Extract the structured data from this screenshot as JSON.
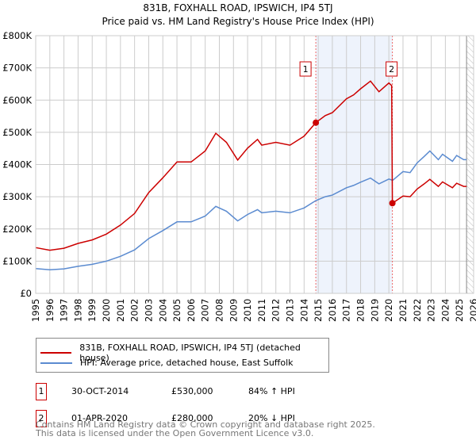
{
  "title_line1": "831B, FOXHALL ROAD, IPSWICH, IP4 5TJ",
  "title_line2": "Price paid vs. HM Land Registry's House Price Index (HPI)",
  "chart_data": {
    "type": "line",
    "title": "831B, FOXHALL ROAD, IPSWICH, IP4 5TJ - Price paid vs. HM Land Registry's House Price Index (HPI)",
    "xlabel": "",
    "ylabel": "",
    "xlim": [
      1995,
      2026
    ],
    "ylim": [
      0,
      800000
    ],
    "y_ticks": [
      "£0",
      "£100K",
      "£200K",
      "£300K",
      "£400K",
      "£500K",
      "£600K",
      "£700K",
      "£800K"
    ],
    "x_ticks": [
      "1995",
      "1996",
      "1997",
      "1998",
      "1999",
      "2000",
      "2001",
      "2002",
      "2003",
      "2004",
      "2005",
      "2006",
      "2007",
      "2008",
      "2009",
      "2010",
      "2011",
      "2012",
      "2013",
      "2014",
      "2015",
      "2016",
      "2017",
      "2018",
      "2019",
      "2020",
      "2021",
      "2022",
      "2023",
      "2024",
      "2025",
      "2026"
    ],
    "grid": true,
    "series": [
      {
        "name": "831B, FOXHALL ROAD, IPSWICH, IP4 5TJ (detached house)",
        "color": "#cc0000",
        "x": [
          1995,
          1996,
          1997,
          1998,
          1999,
          2000,
          2001,
          2002,
          2003,
          2004,
          2005,
          2006,
          2007,
          2007.75,
          2008.5,
          2009.3,
          2010,
          2010.7,
          2011,
          2012,
          2013,
          2014,
          2014.83,
          2015.5,
          2016,
          2017,
          2017.5,
          2018,
          2018.7,
          2019.3,
          2020,
          2020.2,
          2020.25,
          2021,
          2021.5,
          2022,
          2022.5,
          2022.9,
          2023.5,
          2023.8,
          2024.5,
          2024.8,
          2025.3,
          2025.5
        ],
        "y": [
          142,
          134,
          140,
          155,
          166,
          184,
          212,
          248,
          313,
          359,
          408,
          408,
          442,
          497,
          469,
          414,
          451,
          478,
          460,
          469,
          460,
          488,
          530,
          552,
          561,
          604,
          616,
          635,
          659,
          626,
          653,
          645,
          280,
          302,
          300,
          324,
          340,
          354,
          332,
          346,
          328,
          342,
          332,
          332
        ]
      },
      {
        "name": "HPI: Average price, detached house, East Suffolk",
        "color": "#5b8bd0",
        "x": [
          1995,
          1996,
          1997,
          1998,
          1999,
          2000,
          2001,
          2002,
          2003,
          2004,
          2005,
          2006,
          2007,
          2007.75,
          2008.5,
          2009.3,
          2010,
          2010.7,
          2011,
          2012,
          2013,
          2014,
          2014.83,
          2015.5,
          2016,
          2017,
          2017.5,
          2018,
          2018.7,
          2019.3,
          2020,
          2020.2,
          2020.25,
          2021,
          2021.5,
          2022,
          2022.5,
          2022.9,
          2023.5,
          2023.8,
          2024.5,
          2024.8,
          2025.3,
          2025.5
        ],
        "y": [
          77,
          73,
          76,
          84,
          90,
          100,
          115,
          135,
          170,
          195,
          222,
          222,
          240,
          270,
          255,
          225,
          245,
          260,
          250,
          255,
          250,
          265,
          288,
          300,
          305,
          328,
          335,
          345,
          358,
          340,
          355,
          352,
          350,
          378,
          375,
          405,
          425,
          442,
          415,
          432,
          410,
          428,
          415,
          415
        ]
      }
    ],
    "y_unit": "thousands GBP",
    "sales": [
      {
        "label": "1",
        "x": 2014.83,
        "y": 530,
        "date": "30-OCT-2014",
        "price": "£530,000",
        "hpi": "84% ↑ HPI"
      },
      {
        "label": "2",
        "x": 2020.25,
        "y": 280,
        "date": "01-APR-2020",
        "price": "£280,000",
        "hpi": "20% ↓ HPI"
      }
    ],
    "legend_position": "bottom"
  },
  "legend": {
    "red": "831B, FOXHALL ROAD, IPSWICH, IP4 5TJ (detached house)",
    "blue": "HPI: Average price, detached house, East Suffolk"
  },
  "footer": {
    "line1": "Contains HM Land Registry data © Crown copyright and database right 2025.",
    "line2": "This data is licensed under the Open Government Licence v3.0."
  }
}
